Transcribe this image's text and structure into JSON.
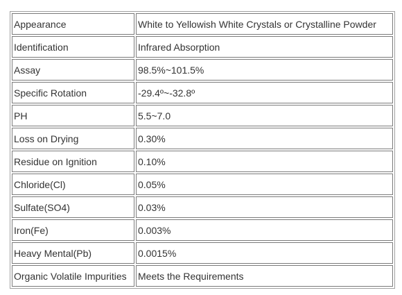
{
  "spec_table": {
    "rows": [
      {
        "parameter": "Appearance",
        "value": "White to Yellowish White Crystals or Crystalline Powder"
      },
      {
        "parameter": "Identification",
        "value": "Infrared Absorption"
      },
      {
        "parameter": "Assay",
        "value": "98.5%~101.5%"
      },
      {
        "parameter": "Specific Rotation",
        "value": "-29.4º~-32.8º"
      },
      {
        "parameter": "PH",
        "value": "5.5~7.0"
      },
      {
        "parameter": "Loss on Drying",
        "value": "0.30%"
      },
      {
        "parameter": "Residue on Ignition",
        "value": "0.10%"
      },
      {
        "parameter": "Chloride(Cl)",
        "value": "0.05%"
      },
      {
        "parameter": "Sulfate(SO4)",
        "value": "0.03%"
      },
      {
        "parameter": "Iron(Fe)",
        "value": "0.003%"
      },
      {
        "parameter": "Heavy Mental(Pb)",
        "value": "0.0015%"
      },
      {
        "parameter": "Organic Volatile Impurities",
        "value": "Meets the Requirements"
      }
    ]
  }
}
